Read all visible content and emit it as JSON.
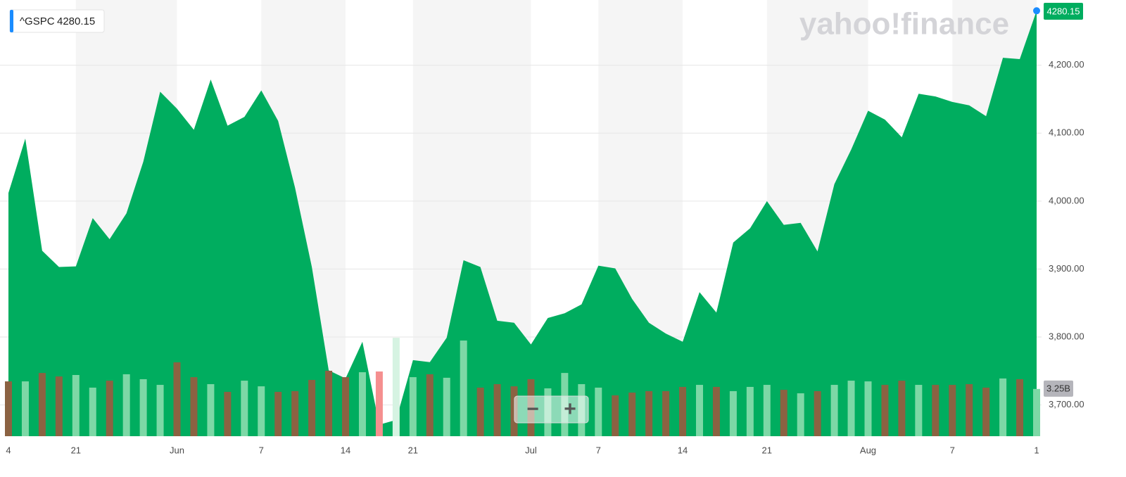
{
  "chart_data": {
    "type": "area",
    "watermark": "yahoo!finance",
    "zoom_controls": [
      "−",
      "+"
    ],
    "categories": [
      "4",
      null,
      null,
      null,
      "21",
      null,
      null,
      null,
      null,
      null,
      "Jun",
      null,
      null,
      null,
      null,
      "7",
      null,
      null,
      null,
      null,
      "14",
      null,
      null,
      null,
      "21",
      null,
      null,
      null,
      null,
      null,
      null,
      "Jul",
      null,
      null,
      null,
      "7",
      null,
      null,
      null,
      null,
      "14",
      null,
      null,
      null,
      null,
      "21",
      null,
      null,
      null,
      null,
      null,
      "Aug",
      null,
      null,
      null,
      null,
      "7",
      null,
      null,
      null,
      null,
      "1"
    ],
    "series": [
      {
        "name": "^GSPC",
        "color": "#00ad5f",
        "marker_color": "#1a8cff",
        "values": [
          4012,
          4092,
          3927,
          3903,
          3904,
          3975,
          3944,
          3982,
          4058,
          4161,
          4136,
          4105,
          4179,
          4111,
          4124,
          4163,
          4118,
          4020,
          3903,
          3751,
          3739,
          3793,
          3671,
          3678,
          3766,
          3763,
          3799,
          3913,
          3903,
          3824,
          3821,
          3789,
          3828,
          3835,
          3848,
          3905,
          3901,
          3856,
          3821,
          3805,
          3793,
          3866,
          3836,
          3939,
          3960,
          4000,
          3965,
          3968,
          3926,
          4025,
          4076,
          4133,
          4120,
          4094,
          4158,
          4154,
          4146,
          4141,
          4125,
          4211,
          4209,
          4280.15
        ]
      },
      {
        "type": "bar",
        "axis": "y2",
        "colors": [
          "#8b6242",
          "#7dd8a6",
          "#8b6242",
          "#8b6242",
          "#7dd8a6",
          "#7dd8a6",
          "#8b6242",
          "#7dd8a6",
          "#7dd8a6",
          "#7dd8a6",
          "#8b6242",
          "#8b6242",
          "#7dd8a6",
          "#8b6242",
          "#7dd8a6",
          "#7dd8a6",
          "#8b6242",
          "#8b6242",
          "#8b6242",
          "#8b6242",
          "#8b6242",
          "#7dd8a6",
          "#f58f8f",
          "#d6f3e2",
          "#7dd8a6",
          "#8b6242",
          "#7dd8a6",
          "#7dd8a6",
          "#8b6242",
          "#8b6242",
          "#8b6242",
          "#8b6242",
          "#7dd8a6",
          "#7dd8a6",
          "#7dd8a6",
          "#7dd8a6",
          "#8b6242",
          "#8b6242",
          "#8b6242",
          "#8b6242",
          "#8b6242",
          "#7dd8a6",
          "#8b6242",
          "#7dd8a6",
          "#7dd8a6",
          "#7dd8a6",
          "#8b6242",
          "#7dd8a6",
          "#8b6242",
          "#7dd8a6",
          "#7dd8a6",
          "#7dd8a6",
          "#8b6242",
          "#8b6242",
          "#7dd8a6",
          "#8b6242",
          "#8b6242",
          "#8b6242",
          "#8b6242",
          "#7dd8a6",
          "#8b6242",
          "#7dd8a6"
        ],
        "values": [
          3.77,
          3.77,
          4.35,
          4.11,
          4.21,
          3.34,
          3.82,
          4.26,
          3.92,
          3.53,
          5.08,
          4.06,
          3.58,
          3.05,
          3.82,
          3.43,
          3.05,
          3.1,
          3.87,
          4.5,
          4.06,
          4.4,
          4.45,
          6.77,
          4.06,
          4.26,
          4.02,
          6.58,
          3.34,
          3.58,
          3.43,
          3.92,
          3.29,
          4.35,
          3.58,
          3.34,
          2.81,
          3.0,
          3.1,
          3.1,
          3.39,
          3.53,
          3.39,
          3.1,
          3.39,
          3.53,
          3.19,
          2.95,
          3.1,
          3.53,
          3.82,
          3.77,
          3.53,
          3.82,
          3.53,
          3.53,
          3.53,
          3.58,
          3.34,
          3.97,
          3.92,
          3.25
        ]
      }
    ],
    "ylim": [
      3654,
      4296
    ],
    "yticks": [
      {
        "value": 3700,
        "label": "3,700.00"
      },
      {
        "value": 3800,
        "label": "3,800.00"
      },
      {
        "value": 3900,
        "label": "3,900.00"
      },
      {
        "value": 4000,
        "label": "4,000.00"
      },
      {
        "value": 4100,
        "label": "4,100.00"
      },
      {
        "value": 4200,
        "label": "4,200.00"
      }
    ],
    "y2lim": [
      0,
      30
    ],
    "y2ticks": [
      {
        "value": 3.25,
        "label": "3.25B"
      }
    ],
    "grid": true
  }
}
